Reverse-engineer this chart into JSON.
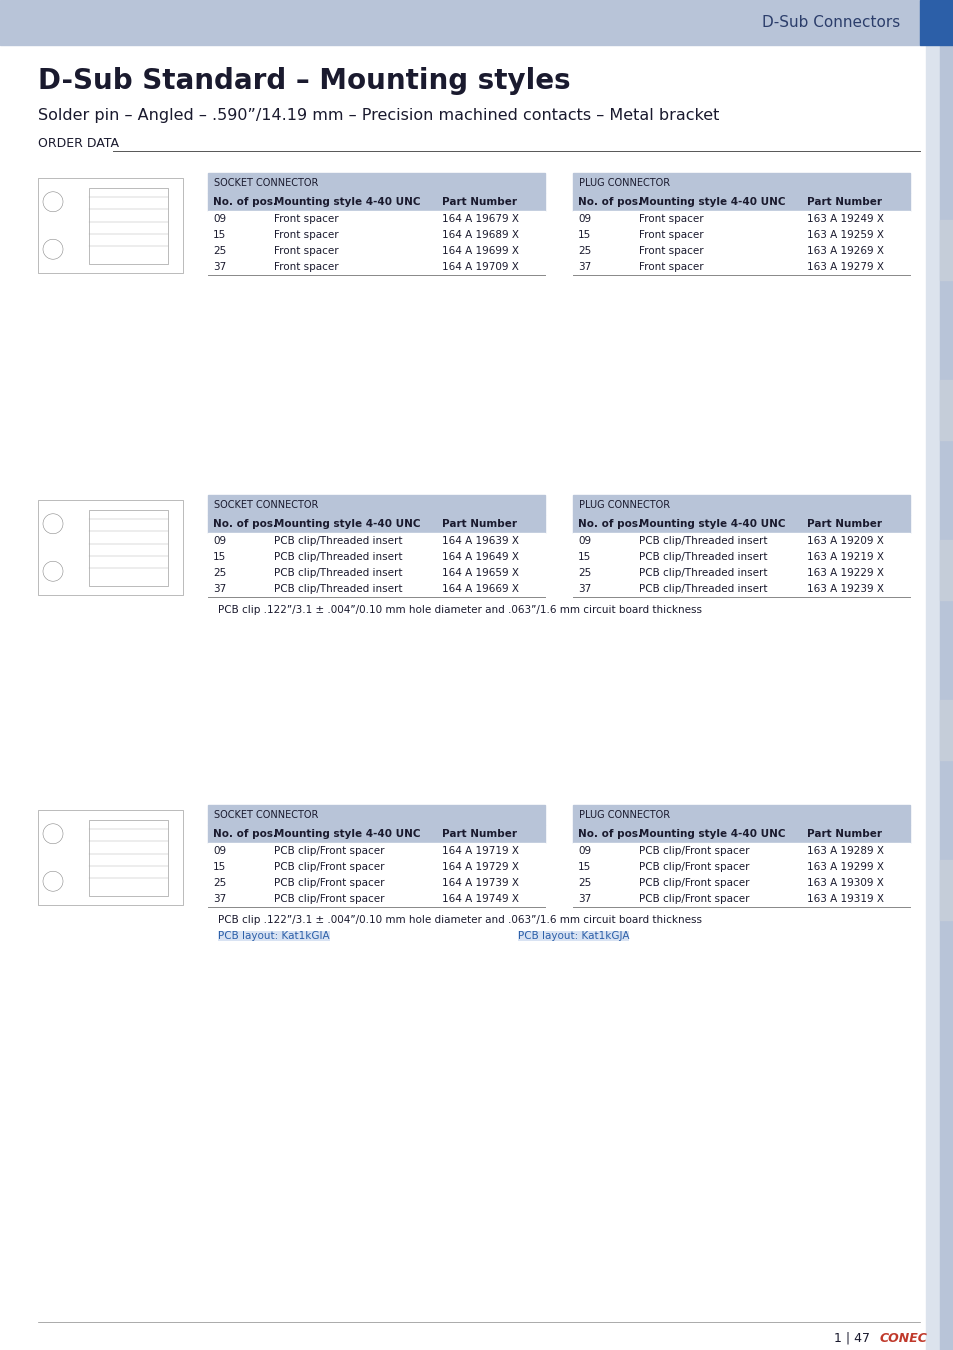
{
  "page_bg": "#ffffff",
  "header_bg": "#b8c4d8",
  "header_text": "D-Sub Connectors",
  "header_text_color": "#2c3e6b",
  "right_sidebar_color": "#2c5fa8",
  "right_tab_colors": [
    "#b8c4d8",
    "#b8c4d8",
    "#b8c4d8",
    "#b8c4d8",
    "#b8c4d8"
  ],
  "title": "D-Sub Standard – Mounting styles",
  "subtitle": "Solder pin – Angled – .590”/14.19 mm – Precision machined contacts – Metal bracket",
  "order_data_label": "Order data",
  "table_header_bg": "#b8c4d8",
  "table_header_text_color": "#1a1a2e",
  "table_row_bg": "#ffffff",
  "table_alt_row_bg": "#e8ecf2",
  "sections": [
    {
      "socket_title": "Socket connector",
      "plug_title": "Plug connector",
      "col_headers": [
        "No. of pos.",
        "Mounting style 4-40 UNC",
        "Part Number"
      ],
      "socket_rows": [
        [
          "09",
          "Front spacer",
          "164 A 19679 X"
        ],
        [
          "15",
          "Front spacer",
          "164 A 19689 X"
        ],
        [
          "25",
          "Front spacer",
          "164 A 19699 X"
        ],
        [
          "37",
          "Front spacer",
          "164 A 19709 X"
        ]
      ],
      "plug_rows": [
        [
          "09",
          "Front spacer",
          "163 A 19249 X"
        ],
        [
          "15",
          "Front spacer",
          "163 A 19259 X"
        ],
        [
          "25",
          "Front spacer",
          "163 A 19269 X"
        ],
        [
          "37",
          "Front spacer",
          "163 A 19279 X"
        ]
      ],
      "note": null,
      "pcb_layout_socket": null,
      "pcb_layout_plug": null
    },
    {
      "socket_title": "Socket connector",
      "plug_title": "Plug connector",
      "col_headers": [
        "No. of pos.",
        "Mounting style 4-40 UNC",
        "Part Number"
      ],
      "socket_rows": [
        [
          "09",
          "PCB clip/Threaded insert",
          "164 A 19639 X"
        ],
        [
          "15",
          "PCB clip/Threaded insert",
          "164 A 19649 X"
        ],
        [
          "25",
          "PCB clip/Threaded insert",
          "164 A 19659 X"
        ],
        [
          "37",
          "PCB clip/Threaded insert",
          "164 A 19669 X"
        ]
      ],
      "plug_rows": [
        [
          "09",
          "PCB clip/Threaded insert",
          "163 A 19209 X"
        ],
        [
          "15",
          "PCB clip/Threaded insert",
          "163 A 19219 X"
        ],
        [
          "25",
          "PCB clip/Threaded insert",
          "163 A 19229 X"
        ],
        [
          "37",
          "PCB clip/Threaded insert",
          "163 A 19239 X"
        ]
      ],
      "note": "PCB clip .122”/3.1 ± .004”/0.10 mm hole diameter and .063”/1.6 mm circuit board thickness",
      "pcb_layout_socket": null,
      "pcb_layout_plug": null
    },
    {
      "socket_title": "Socket connector",
      "plug_title": "Plug connector",
      "col_headers": [
        "No. of pos.",
        "Mounting style 4-40 UNC",
        "Part Number"
      ],
      "socket_rows": [
        [
          "09",
          "PCB clip/Front spacer",
          "164 A 19719 X"
        ],
        [
          "15",
          "PCB clip/Front spacer",
          "164 A 19729 X"
        ],
        [
          "25",
          "PCB clip/Front spacer",
          "164 A 19739 X"
        ],
        [
          "37",
          "PCB clip/Front spacer",
          "164 A 19749 X"
        ]
      ],
      "plug_rows": [
        [
          "09",
          "PCB clip/Front spacer",
          "163 A 19289 X"
        ],
        [
          "15",
          "PCB clip/Front spacer",
          "163 A 19299 X"
        ],
        [
          "25",
          "PCB clip/Front spacer",
          "163 A 19309 X"
        ],
        [
          "37",
          "PCB clip/Front spacer",
          "163 A 19319 X"
        ]
      ],
      "note": "PCB clip .122”/3.1 ± .004”/0.10 mm hole diameter and .063”/1.6 mm circuit board thickness",
      "pcb_layout_socket": "PCB layout: Kat1kGIA",
      "pcb_layout_plug": "PCB layout: Kat1kGJA"
    }
  ],
  "footer_page": "1 | 47",
  "footer_logo_text": "CONEC",
  "footer_logo_color": "#c0392b"
}
